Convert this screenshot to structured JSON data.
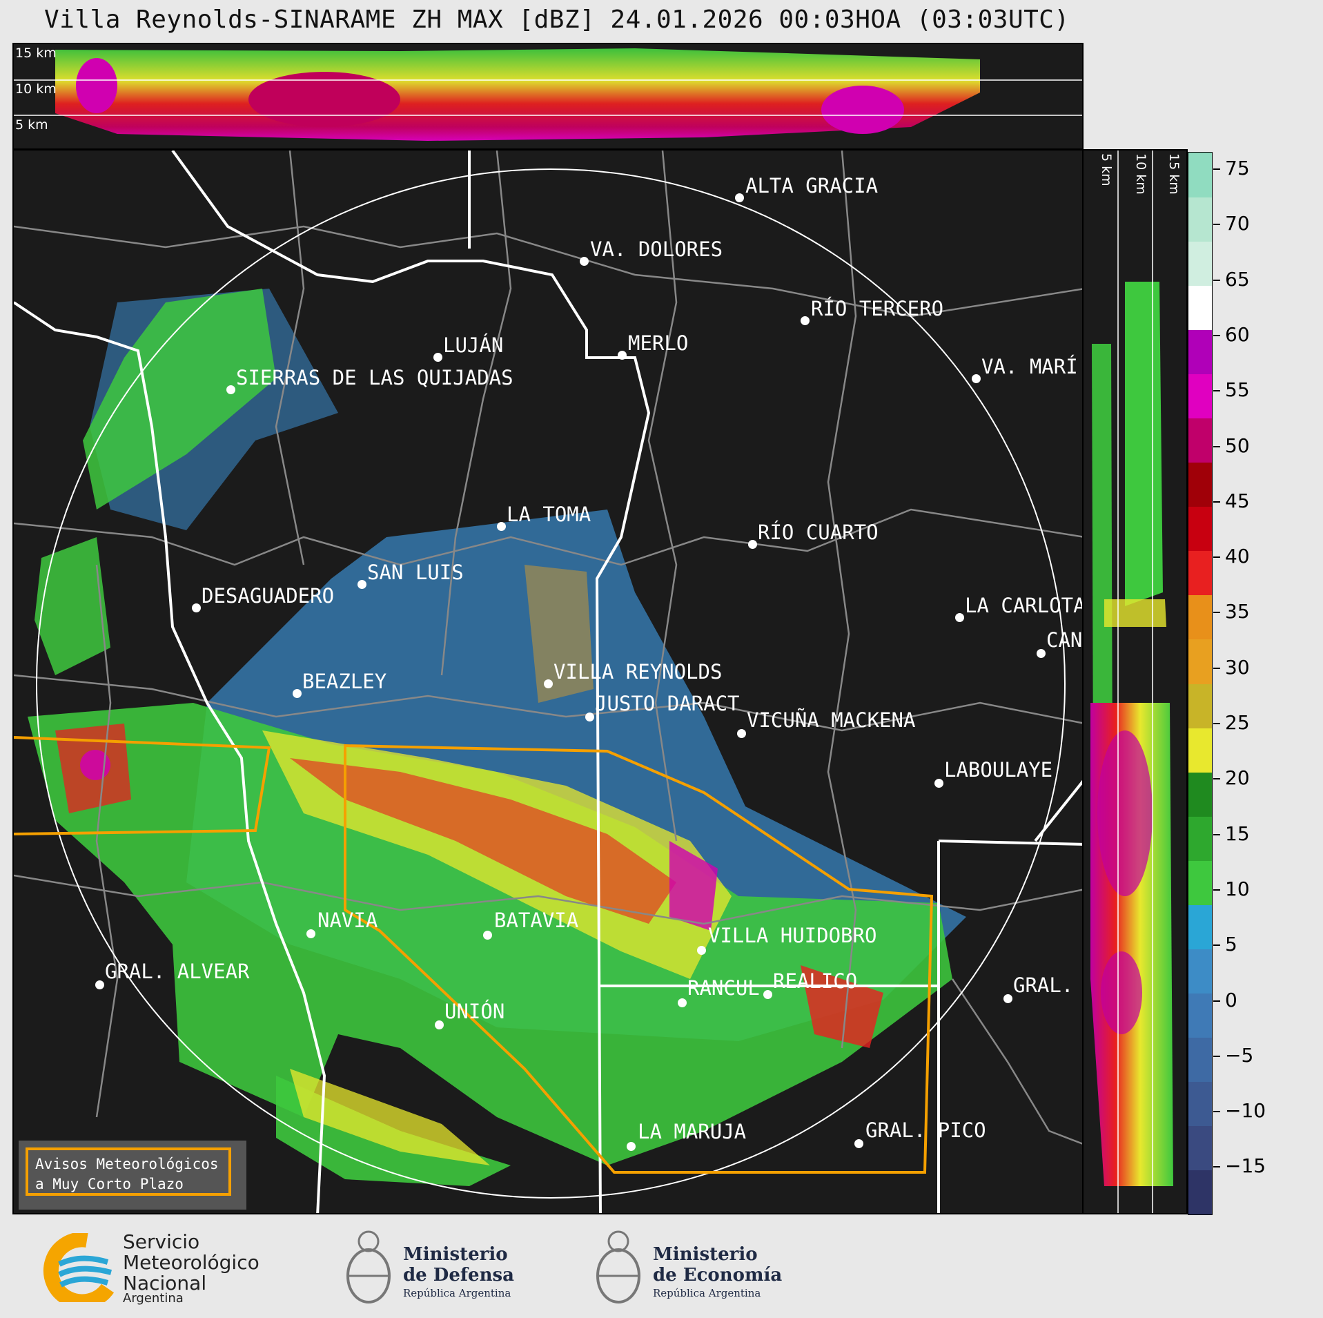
{
  "title": "Villa Reynolds-SINARAME ZH MAX [dBZ] 24.01.2026 00:03HOA (03:03UTC)",
  "height_labels": {
    "h15": "15 km",
    "h10": "10 km",
    "h5": "5 km"
  },
  "side_labels": {
    "s5": "5 km",
    "s10": "10 km",
    "s15": "15 km"
  },
  "cities": {
    "alta_gracia": "ALTA GRACIA",
    "va_dolores": "VA. DOLORES",
    "rio_tercero": "RÍO TERCERO",
    "lujan": "LUJÁN",
    "merlo": "MERLO",
    "va_mari": "VA. MARÍ",
    "sierras": "SIERRAS DE LAS QUIJADAS",
    "la_toma": "LA TOMA",
    "rio_cuarto": "RÍO CUARTO",
    "san_luis": "SAN LUIS",
    "desaguadero": "DESAGUADERO",
    "la_carlota": "LA CARLOTA",
    "can": "CAN",
    "villa_reynolds": "VILLA REYNOLDS",
    "beazley": "BEAZLEY",
    "justo_daract": "JUSTO DARACT",
    "vicuna_mackena": "VICUÑA MACKENA",
    "laboulaye": "LABOULAYE",
    "navia": "NAVIA",
    "batavia": "BATAVIA",
    "villa_huidobro": "VILLA HUIDOBRO",
    "gral_alvear": "GRAL. ALVEAR",
    "rancul": "RANCUL",
    "realico": "REALICO",
    "gral": "GRAL.",
    "union": "UNIÓN",
    "la_maruja": "LA MARUJA",
    "gral_pico": "GRAL. PICO"
  },
  "legend": {
    "line1": "Avisos Meteorológicos",
    "line2": "a Muy Corto Plazo"
  },
  "colorbar": {
    "ticks": [
      "75",
      "70",
      "65",
      "60",
      "55",
      "50",
      "45",
      "40",
      "35",
      "30",
      "25",
      "20",
      "15",
      "10",
      "5",
      "0",
      "−5",
      "−10",
      "−15"
    ],
    "colors": [
      "#2e3466",
      "#3a4a80",
      "#3d5a92",
      "#3e6aa4",
      "#3f7ab6",
      "#3d8cc6",
      "#2aa6d6",
      "#3ec83e",
      "#2ea82e",
      "#1f8a1f",
      "#e8e82e",
      "#c8b428",
      "#e8a020",
      "#e8901a",
      "#e82020",
      "#c80010",
      "#a00008",
      "#c0006a",
      "#e000c0",
      "#b000b8",
      "#ffffff",
      "#d0eee0",
      "#b6e6d0",
      "#90dcc0"
    ]
  },
  "logos": {
    "smn_line1": "Servicio",
    "smn_line2": "Meteorológico",
    "smn_line3": "Nacional",
    "smn_line4": "Argentina",
    "def_line1": "Ministerio",
    "def_line2": "de Defensa",
    "def_line3": "República Argentina",
    "eco_line1": "Ministerio",
    "eco_line2": "de Economía",
    "eco_line3": "República Argentina"
  }
}
